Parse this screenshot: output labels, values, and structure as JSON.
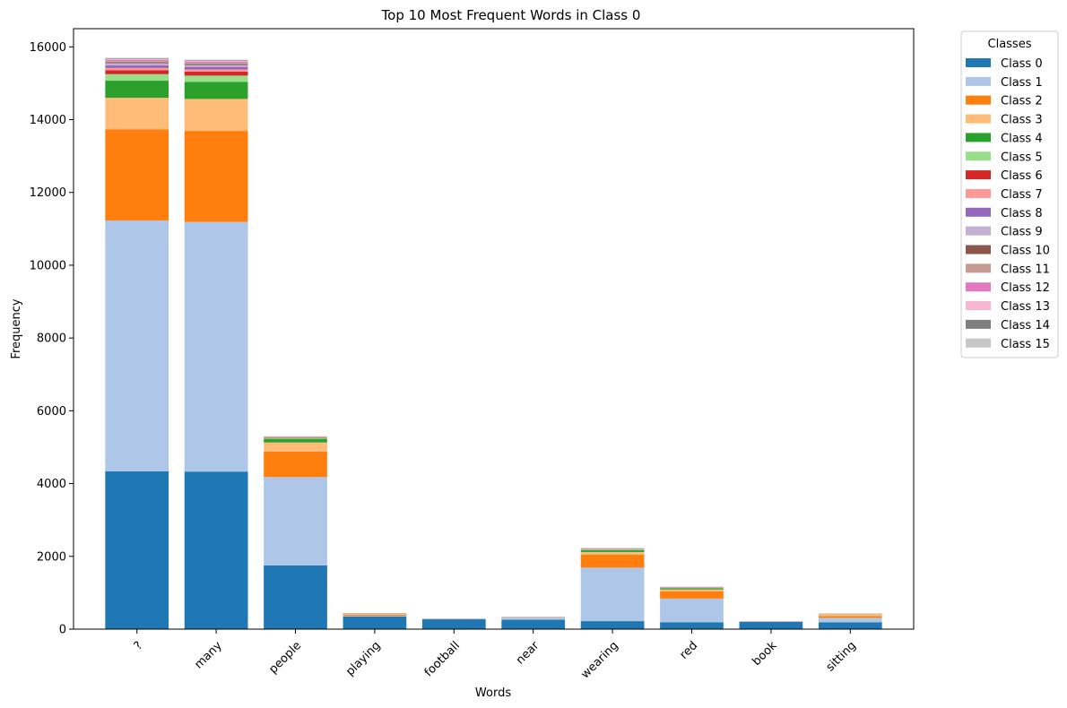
{
  "chart_data": {
    "type": "bar",
    "stacked": true,
    "title": "Top 10 Most Frequent Words in Class 0",
    "xlabel": "Words",
    "ylabel": "Frequency",
    "ylim": [
      0,
      16500
    ],
    "yticks": [
      0,
      2000,
      4000,
      6000,
      8000,
      10000,
      12000,
      14000,
      16000
    ],
    "grid": false,
    "legend_title": "Classes",
    "legend_position": "outside-right-top",
    "categories": [
      "?",
      "many",
      "people",
      "playing",
      "football",
      "near",
      "wearing",
      "red",
      "book",
      "sitting"
    ],
    "series": [
      {
        "name": "Class 0",
        "color": "#1f77b4",
        "values": [
          4340,
          4330,
          1750,
          350,
          270,
          260,
          220,
          190,
          200,
          190
        ]
      },
      {
        "name": "Class 1",
        "color": "#aec7e8",
        "values": [
          6890,
          6860,
          2430,
          20,
          5,
          60,
          1470,
          650,
          5,
          120
        ]
      },
      {
        "name": "Class 2",
        "color": "#ff7f0e",
        "values": [
          2500,
          2500,
          700,
          30,
          2,
          5,
          360,
          200,
          2,
          50
        ]
      },
      {
        "name": "Class 3",
        "color": "#ffbb78",
        "values": [
          870,
          880,
          250,
          20,
          2,
          5,
          70,
          50,
          2,
          50
        ]
      },
      {
        "name": "Class 4",
        "color": "#2ca02c",
        "values": [
          470,
          470,
          100,
          5,
          1,
          2,
          50,
          30,
          1,
          5
        ]
      },
      {
        "name": "Class 5",
        "color": "#98df8a",
        "values": [
          180,
          170,
          30,
          3,
          1,
          1,
          20,
          10,
          1,
          3
        ]
      },
      {
        "name": "Class 6",
        "color": "#d62728",
        "values": [
          110,
          110,
          10,
          2,
          1,
          1,
          10,
          5,
          1,
          2
        ]
      },
      {
        "name": "Class 7",
        "color": "#ff9896",
        "values": [
          60,
          60,
          5,
          2,
          1,
          1,
          5,
          5,
          1,
          2
        ]
      },
      {
        "name": "Class 8",
        "color": "#9467bd",
        "values": [
          70,
          70,
          5,
          2,
          1,
          1,
          5,
          5,
          1,
          2
        ]
      },
      {
        "name": "Class 9",
        "color": "#c5b0d5",
        "values": [
          60,
          50,
          5,
          2,
          1,
          1,
          5,
          5,
          1,
          2
        ]
      },
      {
        "name": "Class 10",
        "color": "#8c564b",
        "values": [
          30,
          30,
          3,
          1,
          1,
          1,
          3,
          3,
          1,
          1
        ]
      },
      {
        "name": "Class 11",
        "color": "#c49c94",
        "values": [
          30,
          30,
          3,
          1,
          1,
          1,
          3,
          3,
          1,
          1
        ]
      },
      {
        "name": "Class 12",
        "color": "#e377c2",
        "values": [
          30,
          30,
          3,
          1,
          1,
          1,
          3,
          3,
          1,
          1
        ]
      },
      {
        "name": "Class 13",
        "color": "#f7b6d2",
        "values": [
          20,
          20,
          2,
          1,
          1,
          1,
          2,
          2,
          1,
          1
        ]
      },
      {
        "name": "Class 14",
        "color": "#7f7f7f",
        "values": [
          20,
          20,
          2,
          1,
          1,
          1,
          2,
          2,
          1,
          1
        ]
      },
      {
        "name": "Class 15",
        "color": "#c7c7c7",
        "values": [
          20,
          20,
          2,
          1,
          1,
          1,
          2,
          2,
          1,
          1
        ]
      }
    ]
  }
}
